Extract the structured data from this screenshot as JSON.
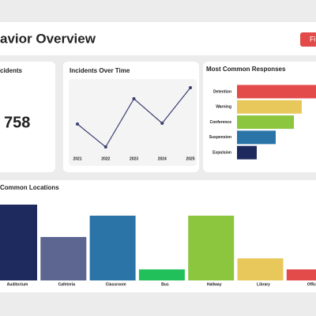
{
  "header": {
    "title": "avior Overview",
    "button": "Fi"
  },
  "kpi": {
    "label": "cidents",
    "value": "758"
  },
  "chart_data": [
    {
      "type": "line",
      "title": "Incidents Over Time",
      "categories": [
        "2021",
        "2022",
        "2023",
        "2024",
        "2025"
      ],
      "values": [
        86,
        28,
        150,
        88,
        178
      ],
      "color": "#3b3f73",
      "ylim": [
        0,
        200
      ]
    },
    {
      "type": "hbar",
      "title": "Most Common Responses",
      "categories": [
        "Detention",
        "Warning",
        "Conference",
        "Suspension",
        "Expulsion"
      ],
      "values": [
        100,
        82,
        72,
        49,
        25
      ],
      "colors": [
        "#e34a4a",
        "#e8c85a",
        "#8cc63f",
        "#2a74a8",
        "#1e2a5e"
      ],
      "xlim": [
        0,
        100
      ]
    },
    {
      "type": "bar",
      "title": "Common Locations",
      "categories": [
        "Auditorium",
        "Cafeteria",
        "Classroom",
        "Bus",
        "Hallway",
        "Library",
        "Office"
      ],
      "values": [
        96,
        55,
        82,
        14,
        82,
        28,
        14
      ],
      "colors": [
        "#1e2a5e",
        "#5c6690",
        "#2a74a8",
        "#22c05a",
        "#8cc63f",
        "#e8c85a",
        "#e34a4a"
      ],
      "ylim": [
        0,
        100
      ]
    }
  ]
}
